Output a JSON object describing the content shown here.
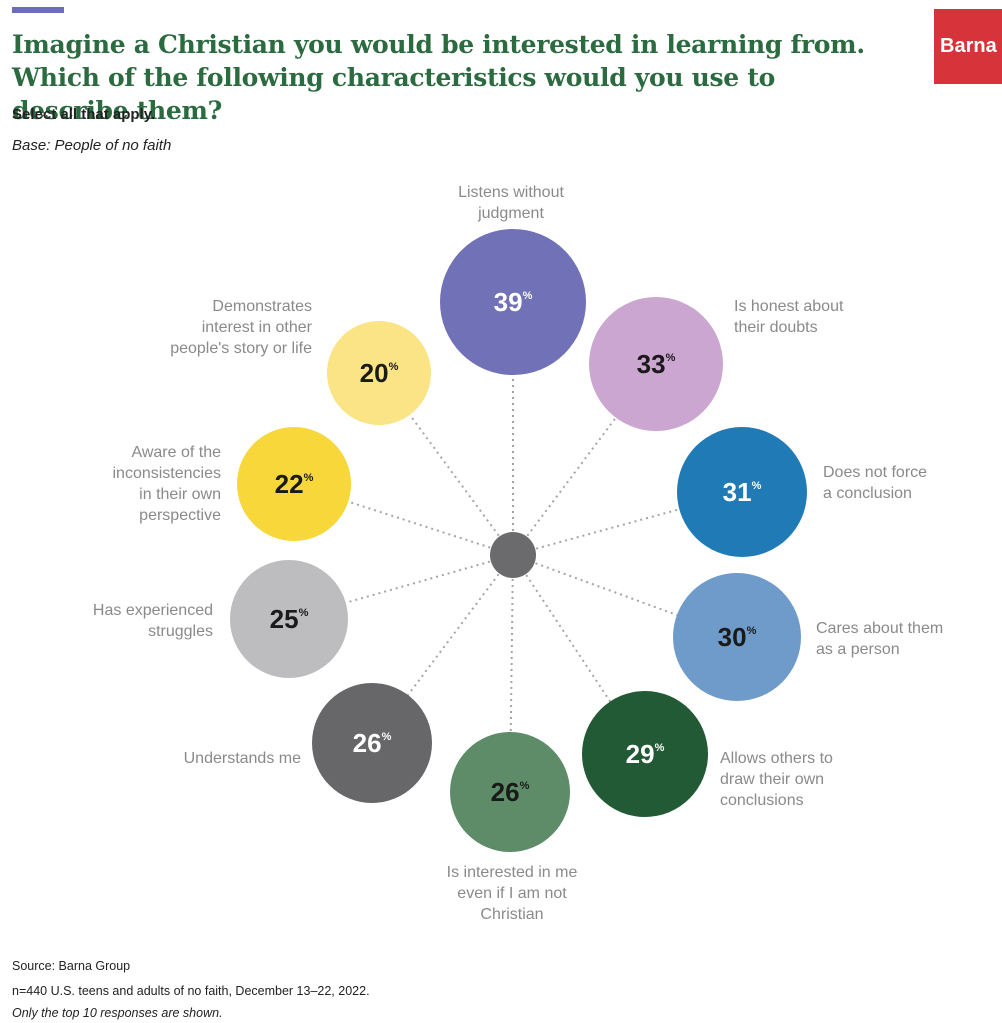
{
  "header": {
    "title": "Imagine a Christian you would be interested in learning from. Which of the following characteristics would you use to describe them?",
    "subtitle": "Select all that apply.",
    "base_note": "Base: People of no faith",
    "logo_text": "Barna"
  },
  "colors": {
    "title": "#2b6b3f",
    "logo": "#d6333a",
    "accent_bar": "#6c6db5",
    "hub": "#6b6b6e",
    "connector": "#a5a5a5",
    "label_text": "#8a8a8a"
  },
  "chart_data": {
    "type": "bubble-radial",
    "unit_suffix": "%",
    "items": [
      {
        "label_lines": [
          "Listens without",
          "judgment"
        ],
        "value": 39,
        "color": "#7071b6"
      },
      {
        "label_lines": [
          "Is honest about",
          "their doubts"
        ],
        "value": 33,
        "color": "#cba6d0"
      },
      {
        "label_lines": [
          "Does not force",
          "a conclusion"
        ],
        "value": 31,
        "color": "#1f7ab5"
      },
      {
        "label_lines": [
          "Cares about them",
          "as a person"
        ],
        "value": 30,
        "color": "#6f9bcb"
      },
      {
        "label_lines": [
          "Allows others to",
          "draw their own",
          "conclusions"
        ],
        "value": 29,
        "color": "#215a34"
      },
      {
        "label_lines": [
          "Is interested in me",
          "even if I am not",
          "Christian"
        ],
        "value": 26,
        "color": "#5e8c68"
      },
      {
        "label_lines": [
          "Understands me"
        ],
        "value": 26,
        "color": "#67676a"
      },
      {
        "label_lines": [
          "Has experienced",
          "struggles"
        ],
        "value": 25,
        "color": "#bdbdbf"
      },
      {
        "label_lines": [
          "Aware of the",
          "inconsistencies",
          "in their own",
          "perspective"
        ],
        "value": 22,
        "color": "#f7d73a"
      },
      {
        "label_lines": [
          "Demonstrates",
          "interest in other",
          "people's story or life"
        ],
        "value": 20,
        "color": "#fbe485"
      }
    ]
  },
  "footer": {
    "source": "Source: Barna Group",
    "sample": "n=440 U.S. teens and adults of no faith, December 13–22, 2022.",
    "note": "Only the top 10 responses are shown."
  }
}
